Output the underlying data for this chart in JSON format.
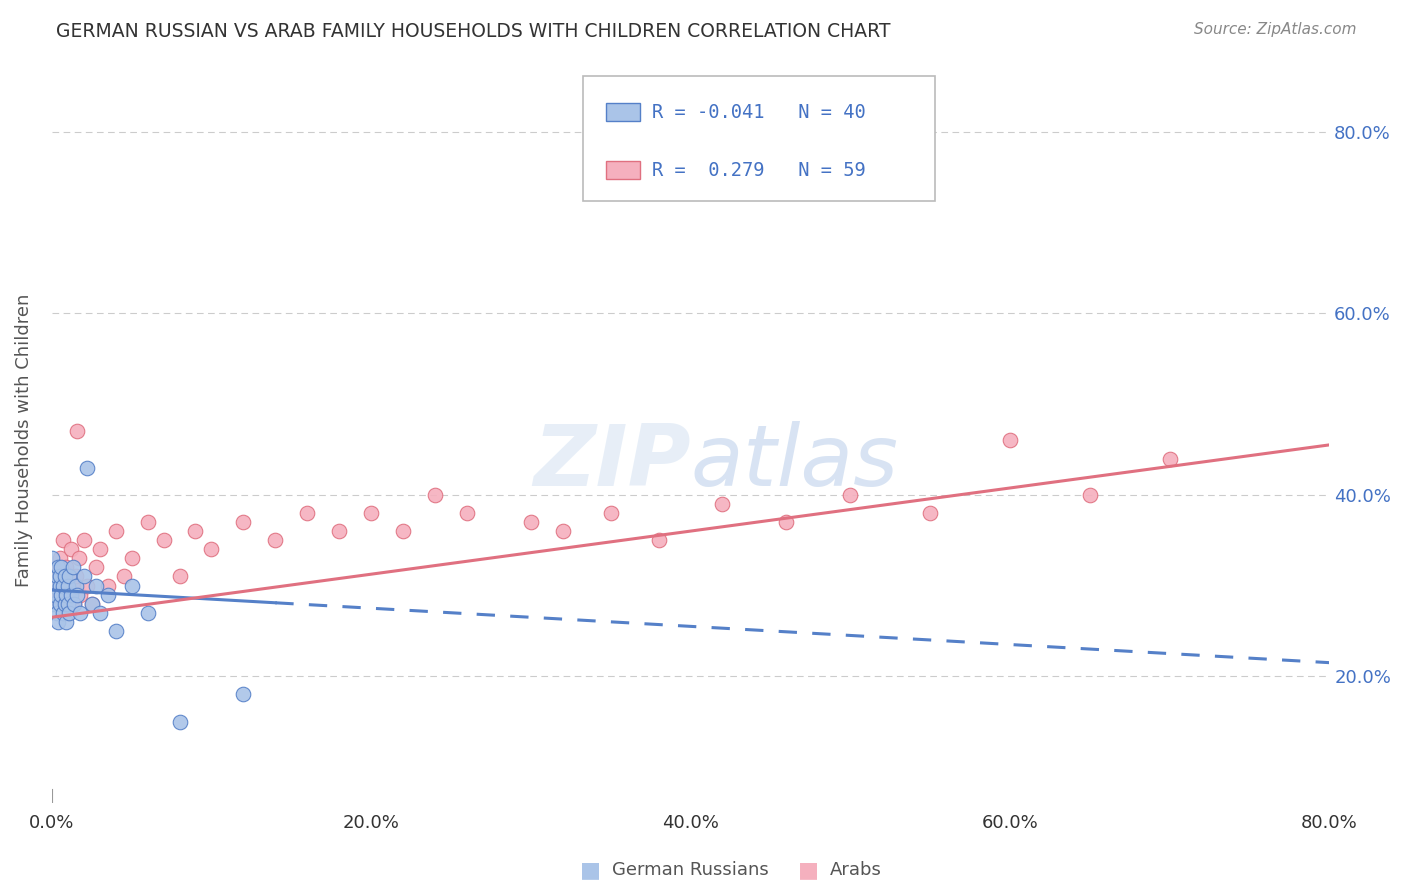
{
  "title": "GERMAN RUSSIAN VS ARAB FAMILY HOUSEHOLDS WITH CHILDREN CORRELATION CHART",
  "source": "Source: ZipAtlas.com",
  "ylabel": "Family Households with Children",
  "legend_label1": "German Russians",
  "legend_label2": "Arabs",
  "r1": -0.041,
  "n1": 40,
  "r2": 0.279,
  "n2": 59,
  "color_blue": "#aac4e8",
  "color_pink": "#f5b0be",
  "edge_blue": "#5580c8",
  "edge_pink": "#e07080",
  "line_blue": "#5580c8",
  "line_pink": "#e07080",
  "text_color": "#4472c4",
  "xmin": 0.0,
  "xmax": 0.8,
  "ymin": 0.06,
  "ymax": 0.86,
  "german_russian_x": [
    0.0,
    0.0,
    0.001,
    0.002,
    0.003,
    0.003,
    0.004,
    0.004,
    0.005,
    0.005,
    0.005,
    0.006,
    0.006,
    0.007,
    0.007,
    0.008,
    0.008,
    0.009,
    0.009,
    0.01,
    0.01,
    0.011,
    0.011,
    0.012,
    0.013,
    0.014,
    0.015,
    0.016,
    0.018,
    0.02,
    0.022,
    0.025,
    0.028,
    0.03,
    0.035,
    0.04,
    0.05,
    0.06,
    0.08,
    0.12
  ],
  "german_russian_y": [
    0.28,
    0.33,
    0.3,
    0.29,
    0.31,
    0.27,
    0.32,
    0.26,
    0.3,
    0.28,
    0.31,
    0.29,
    0.32,
    0.27,
    0.3,
    0.28,
    0.31,
    0.29,
    0.26,
    0.3,
    0.28,
    0.31,
    0.27,
    0.29,
    0.32,
    0.28,
    0.3,
    0.29,
    0.27,
    0.31,
    0.43,
    0.28,
    0.3,
    0.27,
    0.29,
    0.25,
    0.3,
    0.27,
    0.15,
    0.18
  ],
  "arab_x": [
    0.0,
    0.0,
    0.001,
    0.002,
    0.003,
    0.004,
    0.004,
    0.005,
    0.005,
    0.006,
    0.006,
    0.007,
    0.007,
    0.008,
    0.008,
    0.009,
    0.01,
    0.01,
    0.011,
    0.012,
    0.013,
    0.014,
    0.015,
    0.016,
    0.017,
    0.018,
    0.02,
    0.022,
    0.025,
    0.028,
    0.03,
    0.035,
    0.04,
    0.045,
    0.05,
    0.06,
    0.07,
    0.08,
    0.09,
    0.1,
    0.12,
    0.14,
    0.16,
    0.18,
    0.2,
    0.22,
    0.24,
    0.26,
    0.3,
    0.32,
    0.35,
    0.38,
    0.42,
    0.46,
    0.5,
    0.55,
    0.6,
    0.65,
    0.7
  ],
  "arab_y": [
    0.29,
    0.31,
    0.3,
    0.28,
    0.32,
    0.29,
    0.31,
    0.28,
    0.33,
    0.3,
    0.29,
    0.31,
    0.35,
    0.28,
    0.3,
    0.32,
    0.29,
    0.27,
    0.31,
    0.34,
    0.3,
    0.28,
    0.31,
    0.47,
    0.33,
    0.29,
    0.35,
    0.3,
    0.28,
    0.32,
    0.34,
    0.3,
    0.36,
    0.31,
    0.33,
    0.37,
    0.35,
    0.31,
    0.36,
    0.34,
    0.37,
    0.35,
    0.38,
    0.36,
    0.38,
    0.36,
    0.4,
    0.38,
    0.37,
    0.36,
    0.38,
    0.35,
    0.39,
    0.37,
    0.4,
    0.38,
    0.46,
    0.4,
    0.44
  ],
  "xticks": [
    0.0,
    0.2,
    0.4,
    0.6,
    0.8
  ],
  "xtick_labels": [
    "0.0%",
    "20.0%",
    "40.0%",
    "60.0%",
    "80.0%"
  ],
  "yticks": [
    0.2,
    0.4,
    0.6,
    0.8
  ],
  "ytick_labels_right": [
    "20.0%",
    "40.0%",
    "60.0%",
    "80.0%"
  ]
}
